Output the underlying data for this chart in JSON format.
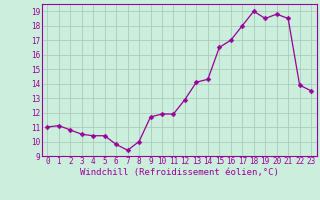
{
  "x": [
    0,
    1,
    2,
    3,
    4,
    5,
    6,
    7,
    8,
    9,
    10,
    11,
    12,
    13,
    14,
    15,
    16,
    17,
    18,
    19,
    20,
    21,
    22,
    23
  ],
  "y": [
    11.0,
    11.1,
    10.8,
    10.5,
    10.4,
    10.4,
    9.8,
    9.4,
    10.0,
    11.7,
    11.9,
    11.9,
    12.9,
    14.1,
    14.3,
    16.5,
    17.0,
    18.0,
    19.0,
    18.5,
    18.8,
    18.5,
    13.9,
    13.5
  ],
  "line_color": "#990099",
  "marker": "D",
  "marker_size": 2.5,
  "bg_color": "#cceedd",
  "grid_color": "#aaccbb",
  "xlabel": "Windchill (Refroidissement éolien,°C)",
  "ylabel": "",
  "title": "",
  "xlim": [
    -0.5,
    23.5
  ],
  "ylim": [
    9,
    19.5
  ],
  "yticks": [
    9,
    10,
    11,
    12,
    13,
    14,
    15,
    16,
    17,
    18,
    19
  ],
  "xticks": [
    0,
    1,
    2,
    3,
    4,
    5,
    6,
    7,
    8,
    9,
    10,
    11,
    12,
    13,
    14,
    15,
    16,
    17,
    18,
    19,
    20,
    21,
    22,
    23
  ],
  "tick_label_fontsize": 5.5,
  "xlabel_fontsize": 6.5,
  "tick_color": "#990099",
  "axes_color": "#990099"
}
